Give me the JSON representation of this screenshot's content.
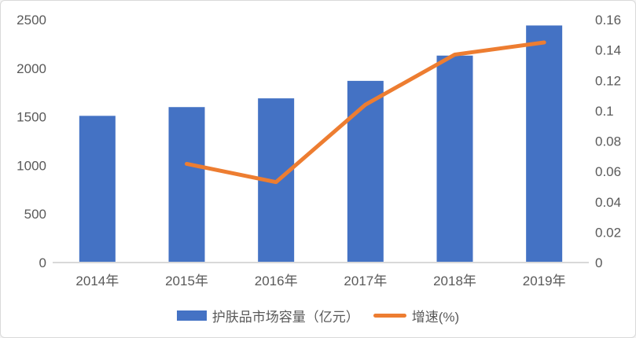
{
  "chart_data": {
    "type": "combo",
    "title": "",
    "categories": [
      "2014年",
      "2015年",
      "2016年",
      "2017年",
      "2018年",
      "2019年"
    ],
    "series": [
      {
        "name": "护肤品市场容量（亿元）",
        "type": "bar",
        "axis": "left",
        "color": "#4472C4",
        "values": [
          1510,
          1600,
          1690,
          1870,
          2130,
          2440
        ]
      },
      {
        "name": "增速(%)",
        "type": "line",
        "axis": "right",
        "color": "#ED7D31",
        "values": [
          null,
          0.065,
          0.053,
          0.104,
          0.137,
          0.145
        ]
      }
    ],
    "left_axis": {
      "range": [
        0,
        2500
      ],
      "tick_values": [
        0,
        500,
        1000,
        1500,
        2000,
        2500
      ],
      "tick_labels": [
        "0",
        "500",
        "1000",
        "1500",
        "2000",
        "2500"
      ]
    },
    "right_axis": {
      "range": [
        0,
        0.16
      ],
      "tick_values": [
        0,
        0.02,
        0.04,
        0.06,
        0.08,
        0.1,
        0.12,
        0.14,
        0.16
      ],
      "tick_labels": [
        "0",
        "0.02",
        "0.04",
        "0.06",
        "0.08",
        "0.1",
        "0.12",
        "0.14",
        "0.16"
      ]
    },
    "grid": false,
    "legend_position": "bottom"
  },
  "legend": {
    "bar_label": "护肤品市场容量（亿元）",
    "line_label": "增速(%)"
  },
  "colors": {
    "bar": "#4472C4",
    "line": "#ED7D31",
    "axis_text": "#595959",
    "axis_line": "#D9D9D9",
    "border": "#D9D9D9",
    "background": "#FFFFFF"
  }
}
